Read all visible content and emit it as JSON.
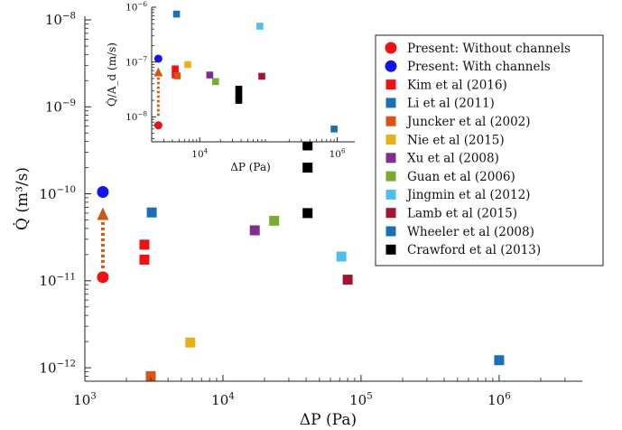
{
  "chart_data": [
    {
      "type": "scatter",
      "title": "",
      "xlabel": "ΔP (Pa)",
      "ylabel": "Q̇ (m³/s)",
      "xscale": "log",
      "yscale": "log",
      "xlim": [
        1000,
        4000000
      ],
      "ylim": [
        7e-13,
        1.1e-08
      ],
      "xticks": [
        {
          "value": 1000,
          "base": "10",
          "exp": "3"
        },
        {
          "value": 10000,
          "base": "10",
          "exp": "4"
        },
        {
          "value": 100000,
          "base": "10",
          "exp": "5"
        },
        {
          "value": 1000000,
          "base": "10",
          "exp": "6"
        }
      ],
      "yticks": [
        {
          "value": 1e-12,
          "base": "10",
          "exp": "−12"
        },
        {
          "value": 1e-11,
          "base": "10",
          "exp": "−11"
        },
        {
          "value": 1e-10,
          "base": "10",
          "exp": "−10"
        },
        {
          "value": 1e-09,
          "base": "10",
          "exp": "−9"
        },
        {
          "value": 1e-08,
          "base": "10",
          "exp": "−8"
        }
      ],
      "grid": false,
      "legend_position": "right",
      "arrow": {
        "x": 1350,
        "from": 1.1e-11,
        "to": 7e-11,
        "color": "#cc5a0e"
      },
      "series": [
        {
          "name": "Present: Without channels",
          "marker": "circle",
          "color": "#ee1111",
          "points": [
            [
              1350,
              1.1e-11
            ]
          ]
        },
        {
          "name": "Present: With channels",
          "marker": "circle",
          "color": "#1414ee",
          "points": [
            [
              1350,
              1.05e-10
            ]
          ]
        },
        {
          "name": "Kim et al (2016)",
          "marker": "square",
          "color": "#ee1111",
          "points": [
            [
              2700,
              2.6e-11
            ],
            [
              2700,
              1.75e-11
            ]
          ]
        },
        {
          "name": "Li et al (2011)",
          "marker": "square",
          "color": "#1a6fb5",
          "points": [
            [
              3050,
              6.1e-11
            ]
          ]
        },
        {
          "name": "Juncker et al (2002)",
          "marker": "square",
          "color": "#d95319",
          "points": [
            [
              3000,
              8e-13
            ]
          ]
        },
        {
          "name": "Nie et al (2015)",
          "marker": "square",
          "color": "#e8b11c",
          "points": [
            [
              5800,
              1.95e-12
            ]
          ]
        },
        {
          "name": "Xu et al (2008)",
          "marker": "square",
          "color": "#7e2f8e",
          "points": [
            [
              17000,
              3.8e-11
            ]
          ]
        },
        {
          "name": "Guan et al (2006)",
          "marker": "square",
          "color": "#77ac30",
          "points": [
            [
              23500,
              4.9e-11
            ]
          ]
        },
        {
          "name": "Jingmin et al (2012)",
          "marker": "square",
          "color": "#4dbeee",
          "points": [
            [
              72000,
              1.9e-11
            ]
          ]
        },
        {
          "name": "Lamb et al (2015)",
          "marker": "square",
          "color": "#a2142f",
          "points": [
            [
              80000,
              1.03e-11
            ]
          ]
        },
        {
          "name": "Wheeler et al (2008)",
          "marker": "square",
          "color": "#1a6fb5",
          "points": [
            [
              1000000,
              1.22e-12
            ]
          ]
        },
        {
          "name": "Crawford et al (2013)",
          "marker": "square",
          "color": "#000000",
          "points": [
            [
              41000,
              3.6e-10
            ],
            [
              41000,
              2e-10
            ],
            [
              41000,
              6e-11
            ]
          ]
        }
      ]
    },
    {
      "type": "scatter",
      "title": "",
      "xlabel": "ΔP (Pa)",
      "ylabel": "Q̇/A_d (m/s)",
      "xscale": "log",
      "yscale": "log",
      "xlim": [
        2000,
        1800000
      ],
      "ylim": [
        3.5e-09,
        1e-06
      ],
      "xticks": [
        {
          "value": 10000,
          "base": "10",
          "exp": "4"
        },
        {
          "value": 1000000,
          "base": "10",
          "exp": "6"
        }
      ],
      "yticks": [
        {
          "value": 1e-08,
          "base": "10",
          "exp": "−8"
        },
        {
          "value": 1e-07,
          "base": "10",
          "exp": "−7"
        },
        {
          "value": 1e-06,
          "base": "10",
          "exp": "−6"
        }
      ],
      "grid": false,
      "arrow": {
        "x": 2500,
        "from": 8e-09,
        "to": 8e-08,
        "color": "#cc5a0e"
      },
      "series": [
        {
          "marker": "circle",
          "color": "#ee1111",
          "points": [
            [
              2500,
              7e-09
            ]
          ]
        },
        {
          "marker": "circle",
          "color": "#1414ee",
          "points": [
            [
              2500,
              1.15e-07
            ]
          ]
        },
        {
          "marker": "square",
          "color": "#ee1111",
          "points": [
            [
              4400,
              7.5e-08
            ],
            [
              4400,
              5.8e-08
            ]
          ]
        },
        {
          "marker": "square",
          "color": "#1a6fb5",
          "points": [
            [
              4600,
              7.5e-07
            ]
          ]
        },
        {
          "marker": "square",
          "color": "#d95319",
          "points": [
            [
              4700,
              5.6e-08
            ]
          ]
        },
        {
          "marker": "square",
          "color": "#e8b11c",
          "points": [
            [
              6700,
              9e-08
            ]
          ]
        },
        {
          "marker": "square",
          "color": "#7e2f8e",
          "points": [
            [
              14000,
              5.8e-08
            ]
          ]
        },
        {
          "marker": "square",
          "color": "#77ac30",
          "points": [
            [
              17000,
              4.4e-08
            ]
          ]
        },
        {
          "marker": "square",
          "color": "#4dbeee",
          "points": [
            [
              75000,
              4.5e-07
            ]
          ]
        },
        {
          "marker": "square",
          "color": "#a2142f",
          "points": [
            [
              80000,
              5.5e-08
            ]
          ]
        },
        {
          "marker": "square",
          "color": "#1a6fb5",
          "points": [
            [
              900000,
              6e-09
            ]
          ]
        },
        {
          "marker": "square",
          "color": "#000000",
          "points": [
            [
              37000,
              3.2e-08
            ],
            [
              37000,
              2.5e-08
            ],
            [
              37000,
              2e-08
            ]
          ]
        }
      ]
    }
  ]
}
